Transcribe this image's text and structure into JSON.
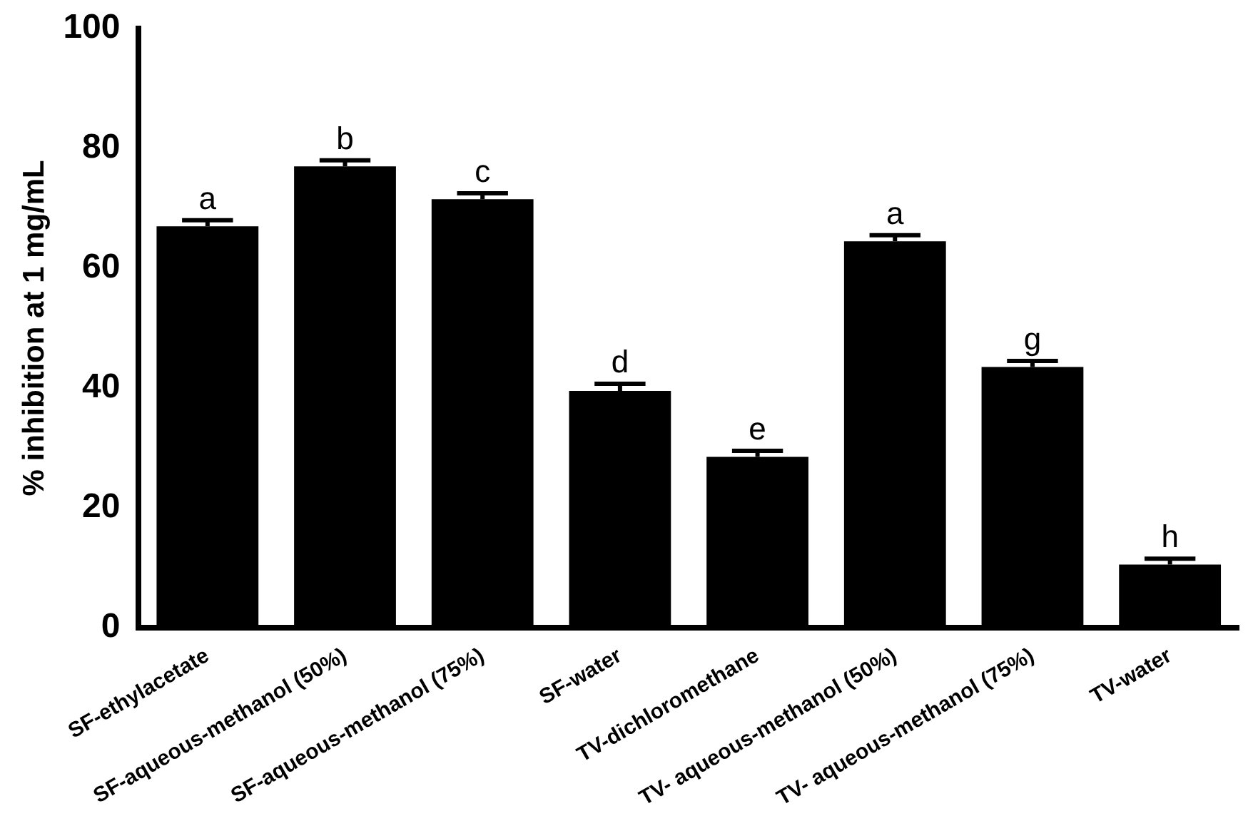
{
  "chart_data": {
    "type": "bar",
    "ylabel": "% inhibition at 1 mg/mL",
    "categories": [
      "SF-ethylacetate",
      "SF-aqueous-methanol (50%)",
      "SF-aqueous-methanol (75%)",
      "SF-water",
      "TV-dichloromethane",
      "TV- aqueous-methanol (50%)",
      "TV- aqueous-methanol (75%)",
      "TV-water"
    ],
    "values": [
      67,
      77,
      71.5,
      39.5,
      28.5,
      64.5,
      43.5,
      10.5
    ],
    "errors": [
      1,
      1,
      1,
      1.2,
      1,
      1,
      1,
      1
    ],
    "color": "#000000",
    "ylim": [
      0,
      100
    ],
    "yticks": [
      0,
      20,
      40,
      60,
      80,
      100
    ],
    "grid": false,
    "legend": false,
    "annotations": [
      {
        "text": "a",
        "x": "SF-ethylacetate",
        "y": 67
      },
      {
        "text": "b",
        "x": "SF-aqueous-methanol (50%)",
        "y": 77
      },
      {
        "text": "c",
        "x": "SF-aqueous-methanol (75%)",
        "y": 71.5
      },
      {
        "text": "d",
        "x": "SF-water",
        "y": 39.5
      },
      {
        "text": "e",
        "x": "TV-dichloromethane",
        "y": 28.5
      },
      {
        "text": "a",
        "x": "TV- aqueous-methanol (50%)",
        "y": 64.5
      },
      {
        "text": "g",
        "x": "TV- aqueous-methanol (75%)",
        "y": 43.5
      },
      {
        "text": "h",
        "x": "TV-water",
        "y": 10.5
      }
    ]
  }
}
